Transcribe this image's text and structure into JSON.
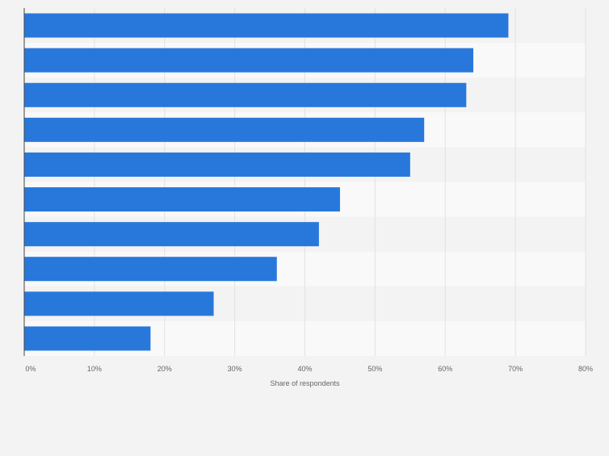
{
  "chart_data": {
    "type": "bar",
    "orientation": "horizontal",
    "categories": [
      "",
      "",
      "",
      "",
      "",
      "",
      "",
      "",
      "",
      ""
    ],
    "values": [
      69,
      64,
      63,
      57,
      55,
      45,
      42,
      36,
      27,
      18
    ],
    "xlabel": "Share of respondents",
    "ylabel": "",
    "xlim": [
      0,
      80
    ],
    "xticks": [
      0,
      10,
      20,
      30,
      40,
      50,
      60,
      70,
      80
    ],
    "tick_labels": [
      "0%",
      "10%",
      "20%",
      "30%",
      "40%",
      "50%",
      "60%",
      "70%",
      "80%"
    ],
    "grid": true,
    "legend": "none",
    "colors": {
      "bar": "#2878dc",
      "band_light": "#f9f9f9",
      "band_dark": "#f3f3f3",
      "grid": "#e2e2e2",
      "axis": "#444444",
      "tick_text": "#666666",
      "page_bg": "#f3f3f3"
    }
  }
}
